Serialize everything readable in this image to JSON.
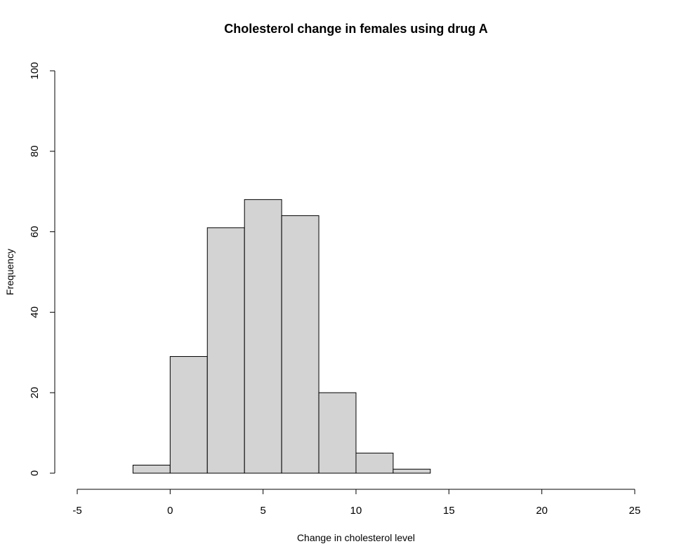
{
  "chart_data": {
    "type": "bar",
    "title": "Cholesterol change in females using drug A",
    "xlabel": "Change in cholesterol level",
    "ylabel": "Frequency",
    "bins": [
      {
        "start": -2,
        "end": 0,
        "count": 2
      },
      {
        "start": 0,
        "end": 2,
        "count": 29
      },
      {
        "start": 2,
        "end": 4,
        "count": 61
      },
      {
        "start": 4,
        "end": 6,
        "count": 68
      },
      {
        "start": 6,
        "end": 8,
        "count": 64
      },
      {
        "start": 8,
        "end": 10,
        "count": 20
      },
      {
        "start": 10,
        "end": 12,
        "count": 5
      },
      {
        "start": 12,
        "end": 14,
        "count": 1
      }
    ],
    "xlim": [
      -5,
      25
    ],
    "ylim": [
      0,
      100
    ],
    "xticks": [
      -5,
      0,
      5,
      10,
      15,
      20,
      25
    ],
    "yticks": [
      0,
      20,
      40,
      60,
      80,
      100
    ],
    "bar_color": "#d3d3d3",
    "grid": false,
    "legend": "none"
  }
}
